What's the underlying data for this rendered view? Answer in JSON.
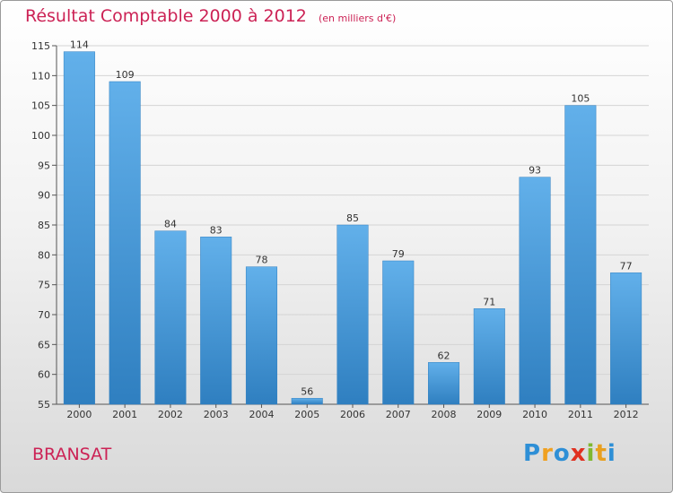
{
  "chart_data": {
    "type": "bar",
    "title": "Résultat Comptable 2000 à 2012",
    "subtitle": "(en milliers d'€)",
    "categories": [
      "2000",
      "2001",
      "2002",
      "2003",
      "2004",
      "2005",
      "2006",
      "2007",
      "2008",
      "2009",
      "2010",
      "2011",
      "2012"
    ],
    "values": [
      114,
      109,
      84,
      83,
      78,
      56,
      85,
      79,
      62,
      71,
      93,
      105,
      77
    ],
    "ylim": [
      55,
      115
    ],
    "yticks": [
      55,
      60,
      65,
      70,
      75,
      80,
      85,
      90,
      95,
      100,
      105,
      110,
      115
    ],
    "grid": true,
    "bar_color": "#4f9fdc",
    "bar_color_light": "#62b0ea",
    "bar_color_dark": "#2f7fc0"
  },
  "place_name": "BRANSAT",
  "logo": {
    "letters": [
      "P",
      "r",
      "o",
      "x",
      "i",
      "t",
      "i"
    ],
    "colors": [
      "#2e8fd6",
      "#f0a020",
      "#2e8fd6",
      "#e03020",
      "#80b830",
      "#e8a020",
      "#2e8fd6"
    ]
  },
  "colors": {
    "title": "#cc2255",
    "grid": "#d4d4d4",
    "axis_text": "#333333"
  }
}
